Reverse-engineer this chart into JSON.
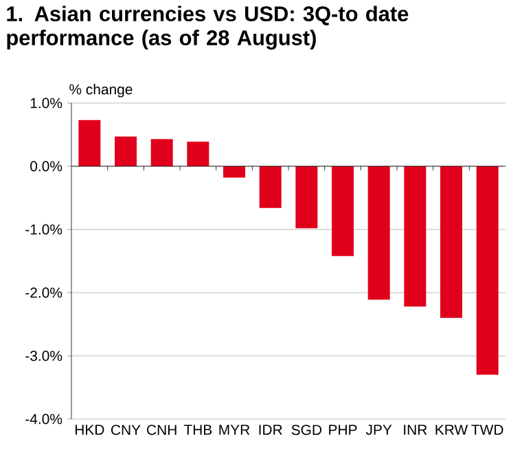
{
  "chart_data": {
    "type": "bar",
    "title": "1. Asian currencies vs USD: 3Q-to date performance (as of 28 August)",
    "ylabel": "% change",
    "categories": [
      "HKD",
      "CNY",
      "CNH",
      "THB",
      "MYR",
      "IDR",
      "SGD",
      "PHP",
      "JPY",
      "INR",
      "KRW",
      "TWD"
    ],
    "values": [
      0.73,
      0.47,
      0.43,
      0.39,
      -0.18,
      -0.66,
      -0.98,
      -1.42,
      -2.11,
      -2.22,
      -2.4,
      -3.3
    ],
    "color": "#e0001b",
    "ylim": [
      -4,
      1
    ],
    "yticks": [
      {
        "value": -4,
        "label": "-4.0%"
      },
      {
        "value": -3,
        "label": "-3.0%"
      },
      {
        "value": -2,
        "label": "-2.0%"
      },
      {
        "value": -1,
        "label": "-1.0%"
      },
      {
        "value": 0,
        "label": "0.0%"
      },
      {
        "value": 1,
        "label": "1.0%"
      }
    ],
    "grid": "y"
  }
}
